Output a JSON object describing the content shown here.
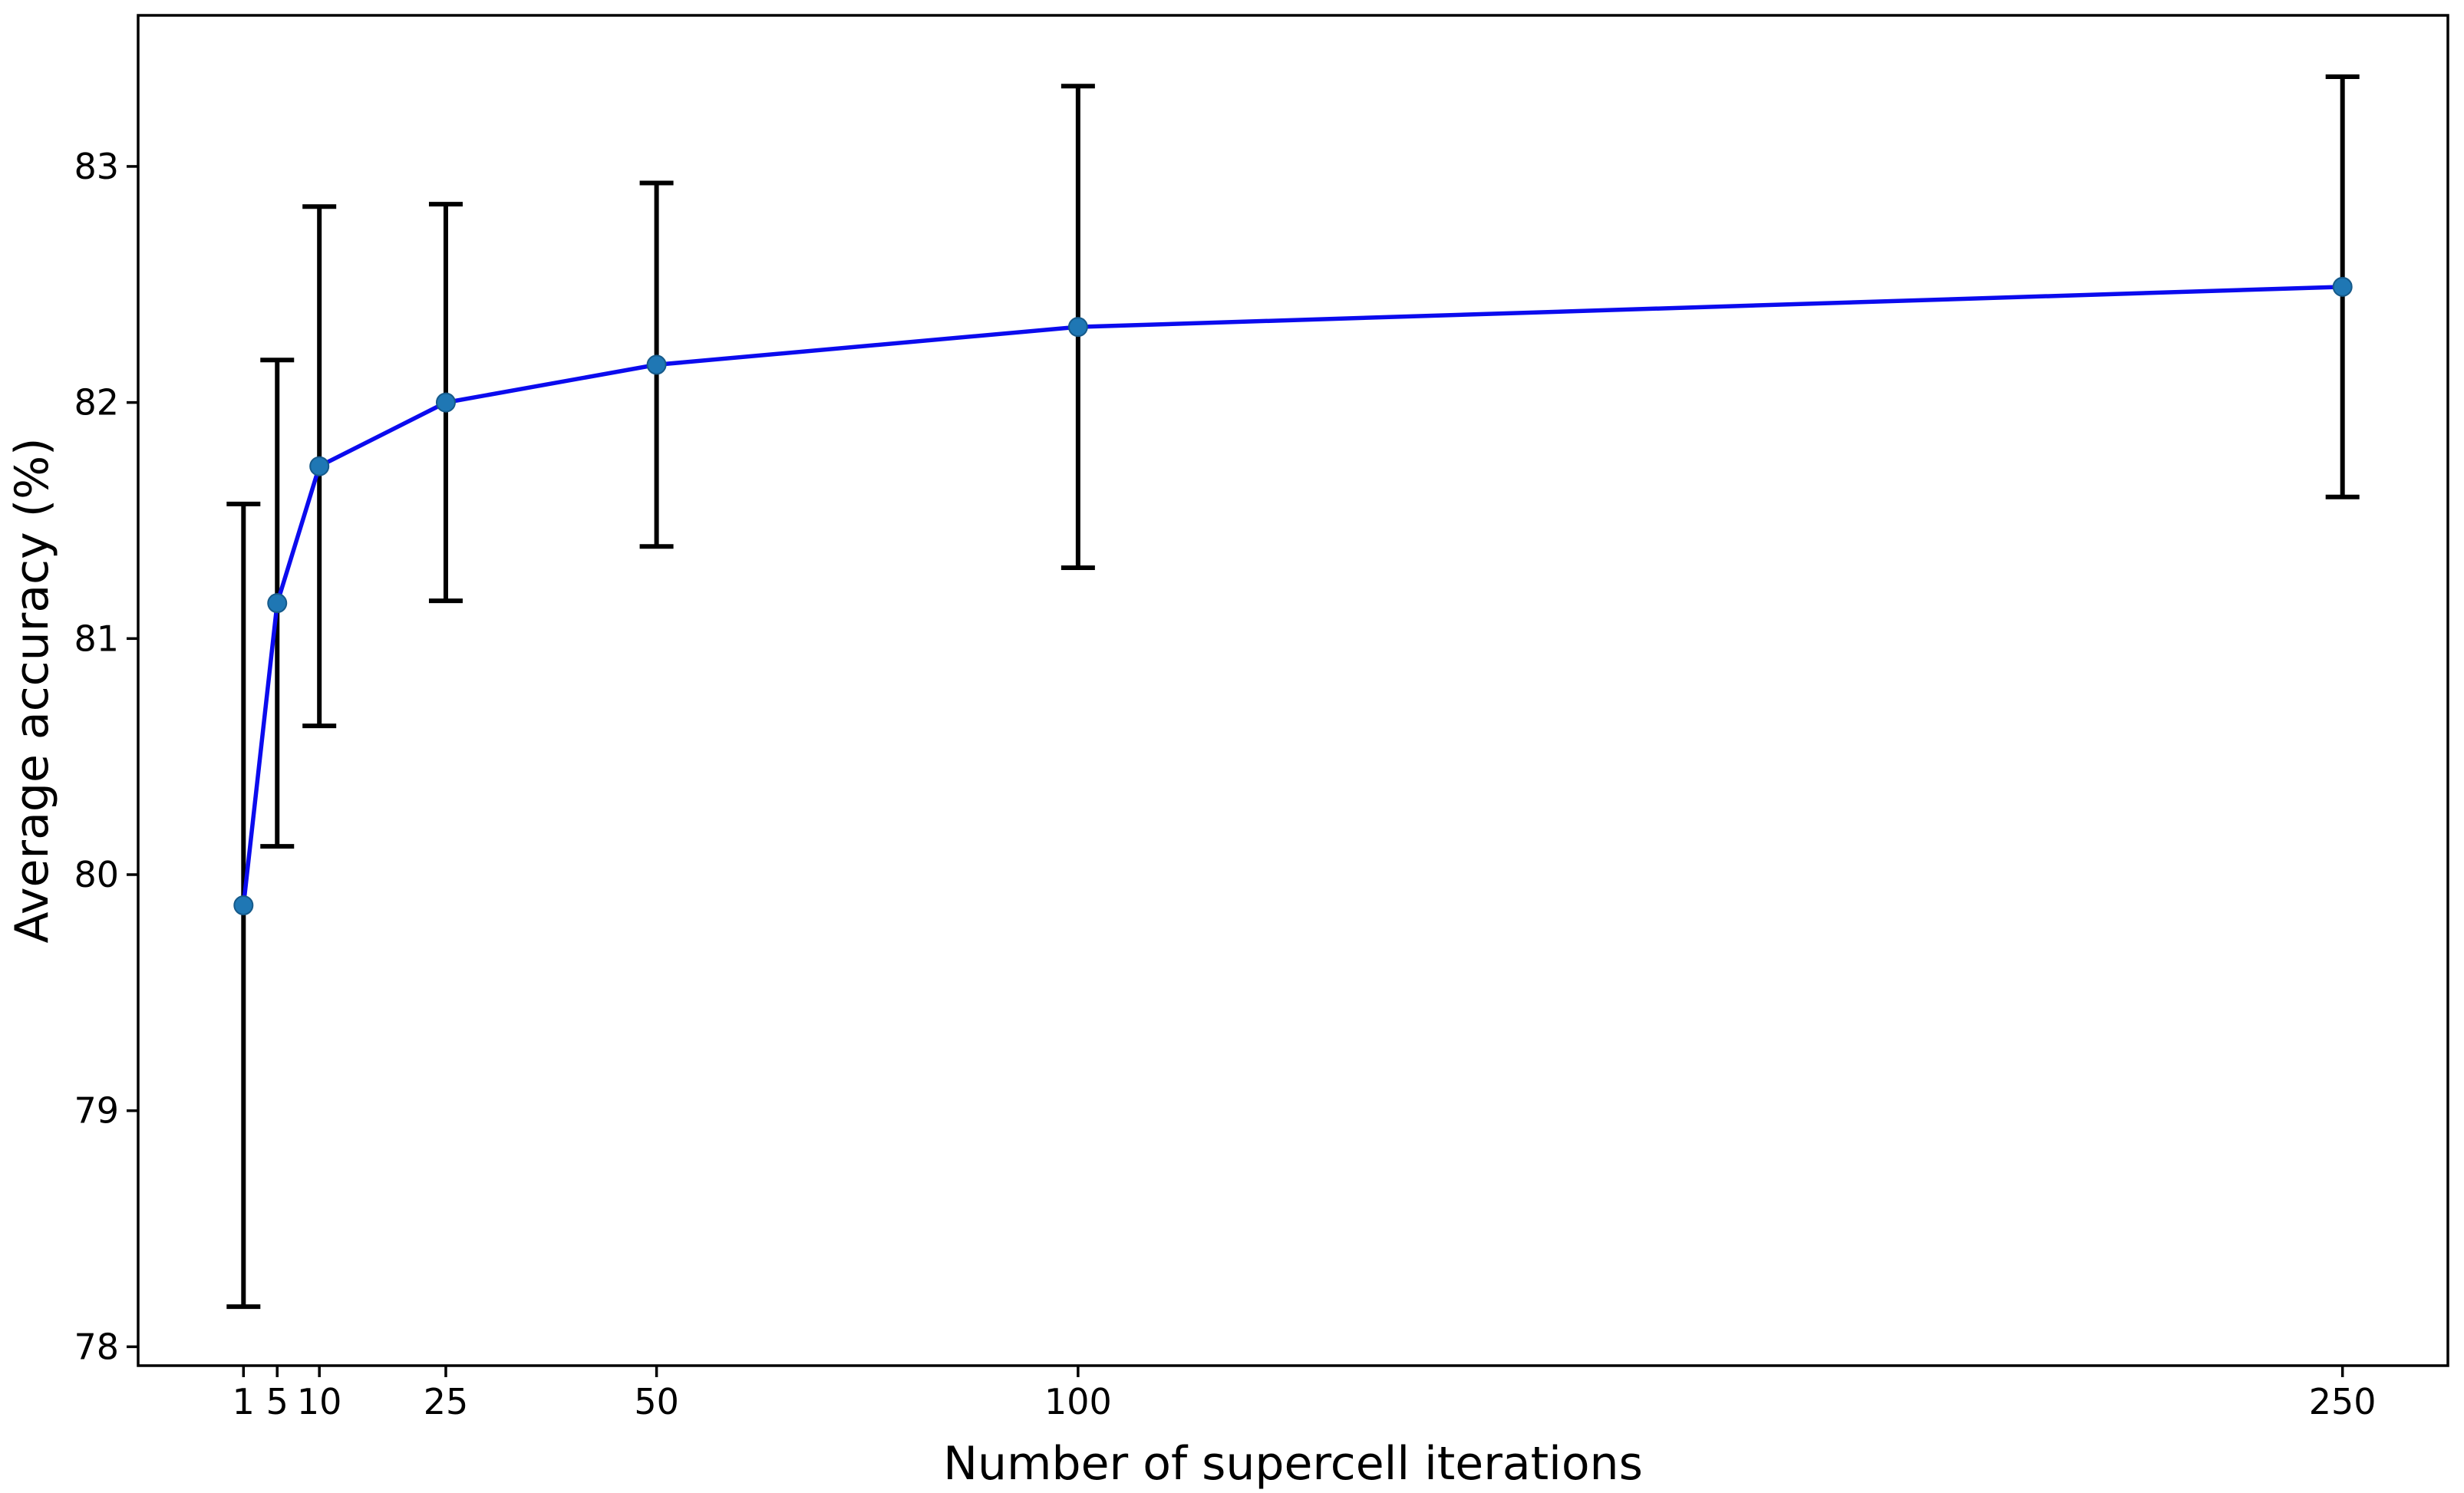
{
  "chart_data": {
    "type": "line",
    "title": "",
    "xlabel": "Number of supercell iterations",
    "ylabel": "Average accuracy (%)",
    "x": [
      1,
      5,
      10,
      25,
      50,
      100,
      250
    ],
    "series": [
      {
        "name": "average-accuracy",
        "values": [
          79.87,
          81.15,
          81.73,
          82.0,
          82.16,
          82.32,
          82.49
        ],
        "yerr": [
          1.7,
          1.03,
          1.1,
          0.84,
          0.77,
          1.02,
          0.89
        ]
      }
    ],
    "xticks": {
      "values": [
        1,
        5,
        10,
        25,
        50,
        100,
        250
      ],
      "labels": [
        "1",
        "5",
        "10",
        "25",
        "50",
        "100",
        "250"
      ]
    },
    "yticks": {
      "values": [
        78,
        79,
        80,
        81,
        82,
        83
      ],
      "labels": [
        "78",
        "79",
        "80",
        "81",
        "82",
        "83"
      ]
    },
    "xlim": [
      -11.5,
      262.5
    ],
    "ylim": [
      77.92,
      83.64
    ],
    "grid": false,
    "legend": null,
    "marker_shape": "circle",
    "colors": {
      "line": "#0b0bee",
      "marker_fill": "#1f77b4",
      "marker_edge": "#165a8a",
      "errorbar": "#000000",
      "axis": "#000000",
      "text": "#000000",
      "background": "#ffffff"
    }
  }
}
